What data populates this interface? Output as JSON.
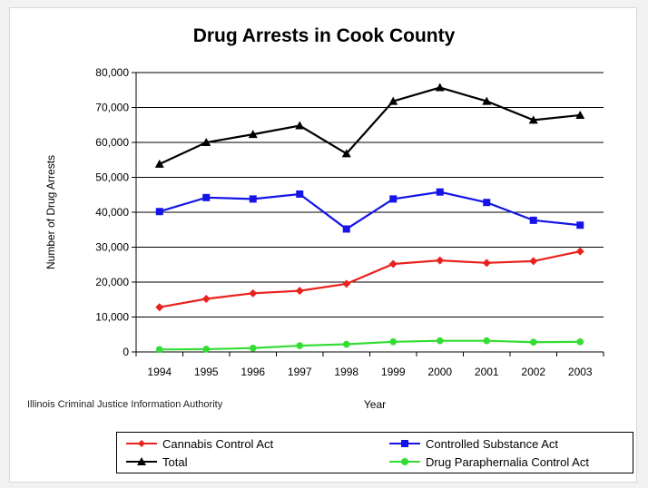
{
  "chart_data": {
    "type": "line",
    "title": "Drug Arrests in Cook County",
    "xlabel": "Year",
    "ylabel": "Number of Drug Arrests",
    "categories": [
      "1994",
      "1995",
      "1996",
      "1997",
      "1998",
      "1999",
      "2000",
      "2001",
      "2002",
      "2003"
    ],
    "ylim": [
      0,
      80000
    ],
    "yticks": [
      "0",
      "10,000",
      "20,000",
      "30,000",
      "40,000",
      "50,000",
      "60,000",
      "70,000",
      "80,000"
    ],
    "grid": true,
    "legend_position": "bottom",
    "series": [
      {
        "name": "Cannabis Control Act",
        "color": "#e8221e",
        "marker": "diamond",
        "values": [
          12800,
          15200,
          16800,
          17500,
          19500,
          25200,
          26200,
          25500,
          26000,
          28800
        ]
      },
      {
        "name": "Controlled Substance Act",
        "color": "#1414e8",
        "marker": "square",
        "values": [
          40200,
          44200,
          43800,
          45200,
          35200,
          43800,
          45800,
          42800,
          37700,
          36300
        ]
      },
      {
        "name": "Total",
        "color": "#000000",
        "marker": "triangle",
        "values": [
          53800,
          60000,
          62300,
          64800,
          56800,
          71800,
          75700,
          71800,
          66400,
          67800
        ]
      },
      {
        "name": "Drug Paraphernalia Control Act",
        "color": "#33dd33",
        "marker": "circle",
        "values": [
          700,
          800,
          1100,
          1800,
          2200,
          2900,
          3200,
          3200,
          2800,
          2900
        ]
      }
    ],
    "source": "Illinois Criminal Justice Information Authority"
  }
}
